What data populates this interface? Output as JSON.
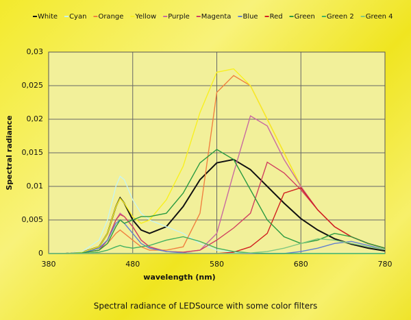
{
  "chart_data": {
    "type": "line",
    "title": "Spectral radiance of LEDSource with some color filters",
    "x_label": "wavelength (nm)",
    "y_label": "Spectral radiance",
    "x": [
      380,
      400,
      420,
      440,
      450,
      460,
      465,
      470,
      480,
      490,
      500,
      520,
      540,
      560,
      580,
      600,
      620,
      640,
      660,
      680,
      700,
      720,
      740,
      760,
      780
    ],
    "xlim": [
      380,
      780
    ],
    "xticks": [
      380,
      480,
      580,
      680,
      780
    ],
    "ylim": [
      0,
      0.03
    ],
    "yticks": [
      0,
      {
        "value": 0.005,
        "label": "0,005"
      },
      {
        "value": 0.01,
        "label": "0,01"
      },
      {
        "value": 0.015,
        "label": "0,015"
      },
      {
        "value": 0.02,
        "label": "0,02"
      },
      {
        "value": 0.025,
        "label": "0,025"
      },
      {
        "value": 0.03,
        "label": "0,03"
      }
    ],
    "grid": true,
    "series": [
      {
        "name": "White",
        "color": "#111111",
        "values": [
          0,
          0,
          0.0002,
          0.001,
          0.003,
          0.007,
          0.0083,
          0.0075,
          0.005,
          0.0035,
          0.003,
          0.004,
          0.007,
          0.011,
          0.0135,
          0.014,
          0.0125,
          0.01,
          0.0075,
          0.0052,
          0.0035,
          0.0022,
          0.0014,
          0.0008,
          0.0004
        ]
      },
      {
        "name": "Cyan",
        "color": "#c8f4f0",
        "values": [
          0,
          0,
          0.0003,
          0.002,
          0.005,
          0.01,
          0.0115,
          0.011,
          0.008,
          0.006,
          0.005,
          0.004,
          0.003,
          0.0015,
          0.0005,
          0.0002,
          0.0001,
          0,
          0,
          0,
          0,
          0,
          0,
          0,
          0
        ]
      },
      {
        "name": "Orange",
        "color": "#f08040",
        "values": [
          0,
          0,
          0.0001,
          0.0005,
          0.0015,
          0.003,
          0.0035,
          0.003,
          0.002,
          0.001,
          0.0005,
          0.0005,
          0.001,
          0.006,
          0.024,
          0.0265,
          0.025,
          0.02,
          0.015,
          0.01,
          0.0065,
          0.004,
          0.0025,
          0.0015,
          0.0008
        ]
      },
      {
        "name": "Yellow",
        "color": "#f8f020",
        "values": [
          0,
          0,
          0.0002,
          0.001,
          0.003,
          0.007,
          0.0082,
          0.0075,
          0.0055,
          0.0045,
          0.005,
          0.008,
          0.013,
          0.021,
          0.027,
          0.0275,
          0.025,
          0.02,
          0.015,
          0.01,
          0.0065,
          0.004,
          0.0025,
          0.0015,
          0.0008
        ]
      },
      {
        "name": "Purple",
        "color": "#c86aa0",
        "values": [
          0,
          0,
          0.0001,
          0.0005,
          0.002,
          0.005,
          0.006,
          0.0055,
          0.004,
          0.002,
          0.001,
          0.0003,
          0.0002,
          0.0005,
          0.003,
          0.012,
          0.0205,
          0.019,
          0.014,
          0.01,
          0.0065,
          0.004,
          0.0025,
          0.0015,
          0.0008
        ]
      },
      {
        "name": "Magenta",
        "color": "#d04060",
        "values": [
          0,
          0,
          0.0001,
          0.0005,
          0.002,
          0.005,
          0.0058,
          0.0055,
          0.004,
          0.002,
          0.001,
          0.0003,
          0.0002,
          0.0005,
          0.002,
          0.0038,
          0.006,
          0.0136,
          0.012,
          0.0095,
          0.0065,
          0.004,
          0.0025,
          0.0015,
          0.0008
        ]
      },
      {
        "name": "Blue",
        "color": "#6080d0",
        "values": [
          0,
          0,
          0.0001,
          0.0008,
          0.002,
          0.0045,
          0.005,
          0.0045,
          0.003,
          0.0015,
          0.0008,
          0.0003,
          0.0001,
          0,
          0,
          0,
          0,
          0,
          0,
          0.0003,
          0.0008,
          0.0015,
          0.0018,
          0.0012,
          0.0006
        ]
      },
      {
        "name": "Red",
        "color": "#d02020",
        "values": [
          0,
          0,
          0,
          0,
          0,
          0,
          0,
          0,
          0,
          0,
          0,
          0,
          0,
          0,
          0,
          0.0002,
          0.001,
          0.003,
          0.009,
          0.0098,
          0.0065,
          0.004,
          0.0025,
          0.0015,
          0.0008
        ]
      },
      {
        "name": "Green",
        "color": "#2a9a40",
        "values": [
          0,
          0,
          0.0001,
          0.0005,
          0.0015,
          0.004,
          0.005,
          0.0045,
          0.005,
          0.0055,
          0.0055,
          0.006,
          0.009,
          0.0135,
          0.0155,
          0.014,
          0.0095,
          0.005,
          0.0025,
          0.0015,
          0.002,
          0.003,
          0.0025,
          0.0015,
          0.0008
        ]
      },
      {
        "name": "Green 2",
        "color": "#40b060",
        "values": [
          0,
          0,
          0,
          0.0002,
          0.0005,
          0.001,
          0.0012,
          0.001,
          0.0008,
          0.001,
          0.0012,
          0.002,
          0.0025,
          0.0018,
          0.0008,
          0.0003,
          0.0001,
          0,
          0,
          0,
          0,
          0,
          0,
          0,
          0
        ]
      },
      {
        "name": "Green 4",
        "color": "#80c880",
        "values": [
          0,
          0,
          0,
          0,
          0,
          0,
          0,
          0,
          0,
          0,
          0,
          0,
          0,
          0,
          0,
          0,
          0.0001,
          0.0003,
          0.0008,
          0.0015,
          0.0022,
          0.002,
          0.0015,
          0.001,
          0.0006
        ]
      }
    ]
  }
}
